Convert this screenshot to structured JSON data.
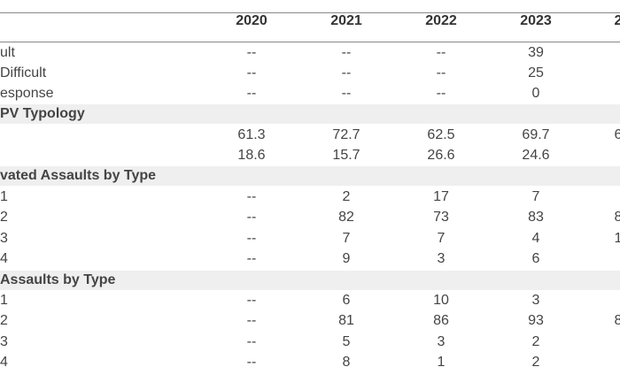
{
  "table": {
    "header": [
      null,
      "2020",
      "2021",
      "2022",
      "2023",
      "2"
    ],
    "rows": [
      [
        "ult",
        "--",
        "--",
        "--",
        "39",
        null
      ],
      [
        "Difficult",
        "--",
        "--",
        "--",
        "25",
        null
      ],
      [
        "esponse",
        "--",
        "--",
        "--",
        "0",
        null
      ],
      [
        "PV Typology"
      ],
      [
        null,
        "61.3",
        "72.7",
        "62.5",
        "69.7",
        "6"
      ],
      [
        null,
        "18.6",
        "15.7",
        "26.6",
        "24.6",
        null
      ],
      [
        "vated Assaults by Type"
      ],
      [
        "1",
        "--",
        "2",
        "17",
        "7",
        null
      ],
      [
        "2",
        "--",
        "82",
        "73",
        "83",
        "8"
      ],
      [
        "3",
        "--",
        "7",
        "7",
        "4",
        "1"
      ],
      [
        "4",
        "--",
        "9",
        "3",
        "6",
        null
      ],
      [
        "Assaults by Type"
      ],
      [
        "1",
        "--",
        "6",
        "10",
        "3",
        null
      ],
      [
        "2",
        "--",
        "81",
        "86",
        "93",
        "8"
      ],
      [
        "3",
        "--",
        "5",
        "3",
        "2",
        null
      ],
      [
        "4",
        "--",
        "8",
        "1",
        "2",
        null
      ]
    ]
  }
}
